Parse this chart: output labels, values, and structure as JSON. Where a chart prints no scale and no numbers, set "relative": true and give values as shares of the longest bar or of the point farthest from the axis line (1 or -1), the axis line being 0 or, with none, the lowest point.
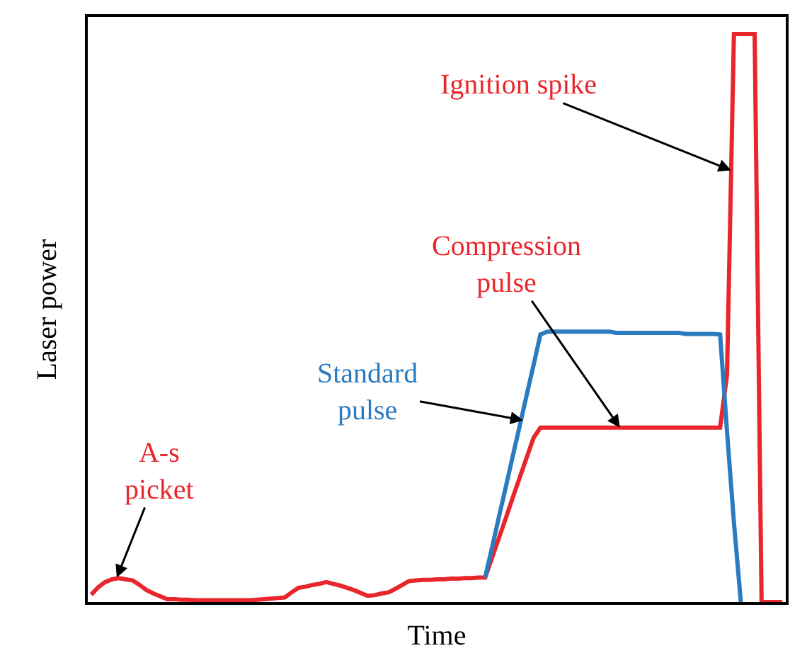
{
  "chart_data": {
    "type": "line",
    "relative": true,
    "xlabel": "Time",
    "ylabel": "Laser power",
    "tick_labels": false,
    "legend": false,
    "marker": "none",
    "line_style": "solid",
    "categories": [
      null,
      null,
      null,
      null,
      null,
      null,
      null,
      null,
      null,
      null,
      null,
      null,
      null,
      null,
      null,
      null,
      null,
      null,
      null,
      null,
      null,
      null,
      null,
      null,
      null,
      null,
      null,
      null,
      null,
      null,
      null,
      null,
      null,
      null,
      null,
      null,
      null,
      null,
      null,
      null,
      null,
      null,
      null,
      null,
      null,
      null,
      null,
      null,
      null,
      null,
      null,
      null,
      null,
      null,
      null,
      null,
      null,
      null,
      null,
      null,
      null,
      null,
      null,
      null,
      null,
      null,
      null,
      null,
      null,
      null,
      null,
      null,
      null,
      null,
      null,
      null,
      null,
      null,
      null,
      null,
      null,
      null,
      null,
      null,
      null,
      null,
      null,
      null,
      null,
      null,
      null,
      null,
      null,
      null,
      null,
      null,
      null,
      null,
      null,
      null,
      null
    ],
    "series": [
      {
        "color": "#e8262b",
        "values": [
          0.013,
          0.026,
          0.035,
          0.04,
          0.042,
          0.04,
          0.038,
          0.03,
          0.021,
          0.015,
          0.01,
          0.005,
          0.005,
          0.004,
          0.004,
          0.003,
          0.003,
          0.003,
          0.003,
          0.003,
          0.003,
          0.003,
          0.003,
          0.003,
          0.004,
          0.005,
          0.006,
          0.007,
          0.008,
          0.017,
          0.025,
          0.027,
          0.03,
          0.032,
          0.035,
          0.032,
          0.029,
          0.025,
          0.021,
          0.016,
          0.011,
          0.012,
          0.015,
          0.017,
          0.023,
          0.03,
          0.037,
          0.038,
          0.039,
          0.039,
          0.04,
          0.04,
          0.041,
          0.041,
          0.042,
          0.042,
          0.043,
          0.043,
          0.078,
          0.113,
          0.148,
          0.184,
          0.219,
          0.254,
          0.289,
          0.307,
          0.307,
          0.307,
          0.307,
          0.307,
          0.307,
          0.307,
          0.307,
          0.307,
          0.307,
          0.307,
          0.307,
          0.307,
          0.307,
          0.307,
          0.307,
          0.307,
          0.307,
          0.307,
          0.307,
          0.307,
          0.307,
          0.307,
          0.307,
          0.307,
          0.307,
          0.307,
          0.4,
          1,
          1,
          1,
          1,
          0,
          0,
          0,
          0
        ]
      },
      {
        "color": "#2a7bc0",
        "values": [
          null,
          null,
          null,
          null,
          null,
          null,
          null,
          null,
          null,
          null,
          null,
          null,
          null,
          null,
          null,
          null,
          null,
          null,
          null,
          null,
          null,
          null,
          null,
          null,
          null,
          null,
          null,
          null,
          null,
          null,
          null,
          null,
          null,
          null,
          null,
          null,
          null,
          null,
          null,
          null,
          null,
          null,
          null,
          null,
          null,
          null,
          null,
          null,
          null,
          null,
          null,
          null,
          null,
          null,
          null,
          null,
          null,
          0.043,
          0.096,
          0.15,
          0.203,
          0.257,
          0.31,
          0.364,
          0.417,
          0.471,
          0.476,
          0.476,
          0.476,
          0.476,
          0.476,
          0.476,
          0.476,
          0.476,
          0.476,
          0.476,
          0.474,
          0.474,
          0.474,
          0.474,
          0.474,
          0.474,
          0.474,
          0.474,
          0.474,
          0.474,
          0.472,
          0.472,
          0.472,
          0.472,
          0.472,
          0.471,
          0.3,
          0.14,
          0,
          null,
          null,
          null,
          null,
          null,
          null
        ]
      }
    ],
    "annotations": [
      "A-s\npicket",
      "Standard\npulse",
      "Compression\npulse",
      "Ignition spike"
    ]
  }
}
